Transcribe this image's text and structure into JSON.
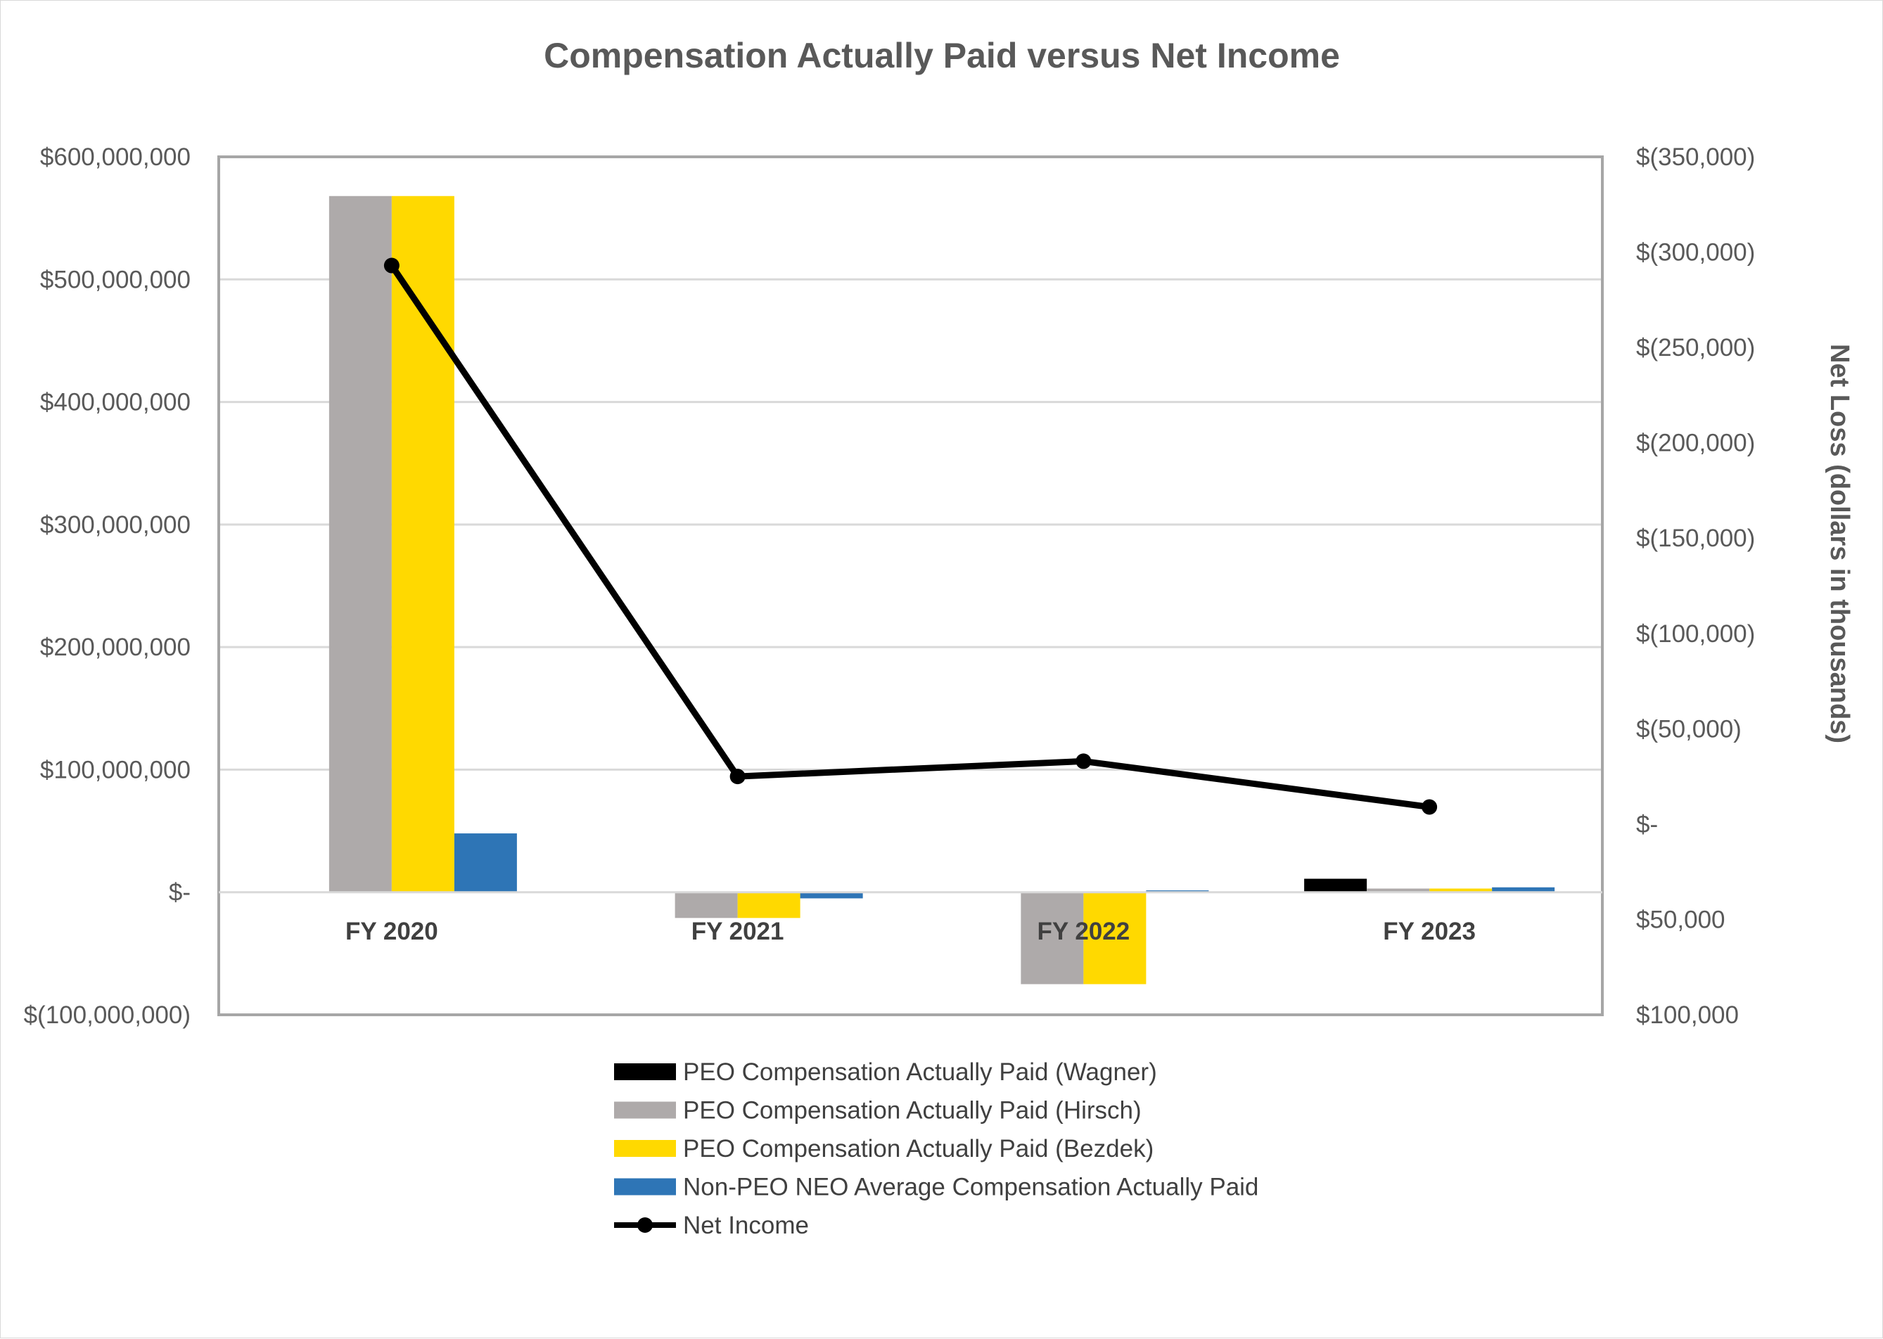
{
  "chart_data": {
    "type": "bar",
    "title": "Compensation Actually Paid versus Net Income",
    "categories": [
      "FY 2020",
      "FY 2021",
      "FY 2022",
      "FY 2023"
    ],
    "left_axis": {
      "ylim": [
        -100000000,
        600000000
      ],
      "ticks": [
        600000000,
        500000000,
        400000000,
        300000000,
        200000000,
        100000000,
        0,
        -100000000
      ],
      "tick_labels": [
        "$600,000,000",
        "$500,000,000",
        "$400,000,000",
        "$300,000,000",
        "$200,000,000",
        "$100,000,000",
        "$-",
        "$(100,000,000)"
      ],
      "ylabel": ""
    },
    "right_axis": {
      "ylim": [
        100000,
        -350000
      ],
      "ticks": [
        -350000,
        -300000,
        -250000,
        -200000,
        -150000,
        -100000,
        -50000,
        0,
        50000,
        100000
      ],
      "tick_labels": [
        "$(350,000)",
        "$(300,000)",
        "$(250,000)",
        "$(200,000)",
        "$(150,000)",
        "$(100,000)",
        "$(50,000)",
        "$-",
        "$50,000",
        "$100,000"
      ],
      "ylabel": "Net Loss (dollars in thousands)"
    },
    "grid": true,
    "legend_position": "bottom",
    "series": [
      {
        "name": "PEO Compensation Actually Paid (Wagner)",
        "type": "bar",
        "axis": "left",
        "color": "#000000",
        "values": [
          null,
          null,
          null,
          11000000
        ]
      },
      {
        "name": "PEO Compensation Actually Paid (Hirsch)",
        "type": "bar",
        "axis": "left",
        "color": "#aeaaaa",
        "values": [
          568000000,
          -21000000,
          -75000000,
          3000000
        ]
      },
      {
        "name": "PEO Compensation Actually Paid (Bezdek)",
        "type": "bar",
        "axis": "left",
        "color": "#ffd900",
        "values": [
          568000000,
          -21000000,
          -75000000,
          3000000
        ]
      },
      {
        "name": "Non-PEO NEO Average Compensation Actually Paid",
        "type": "bar",
        "axis": "left",
        "color": "#2e75b6",
        "values": [
          48000000,
          -5000000,
          1500000,
          4000000
        ]
      },
      {
        "name": "Net Income",
        "type": "line",
        "axis": "right",
        "color": "#000000",
        "values": [
          -293000,
          -25000,
          -33000,
          -9000
        ]
      }
    ]
  }
}
